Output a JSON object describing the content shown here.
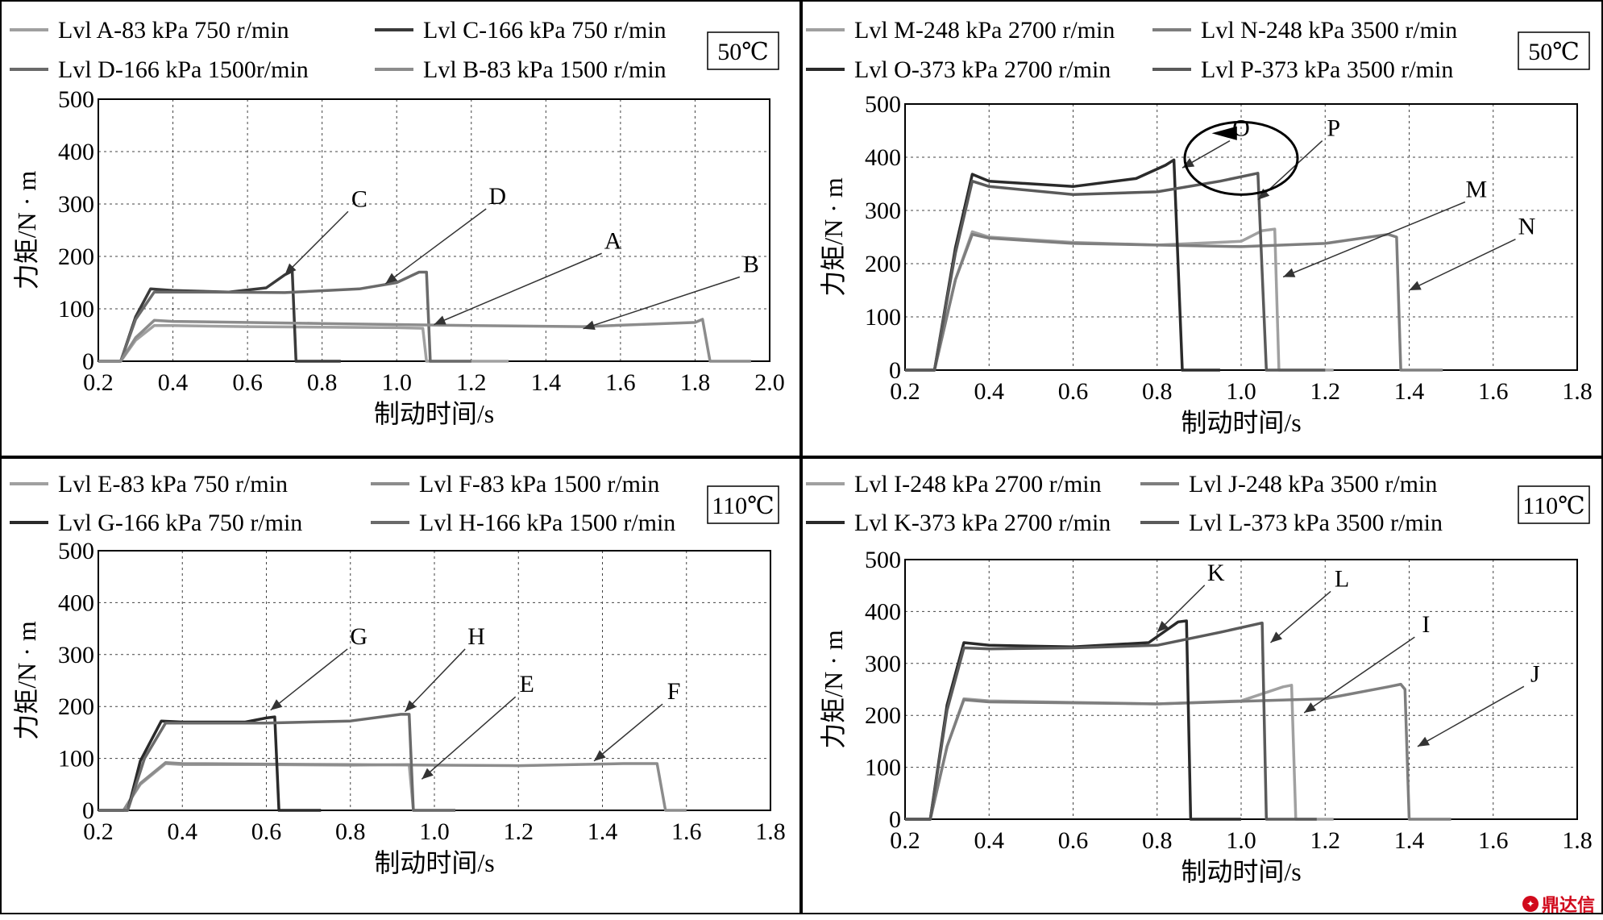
{
  "watermark": "鼎达信",
  "chart_data": [
    {
      "type": "line",
      "temperature": "50℃",
      "xlabel": "制动时间/s",
      "ylabel": "力矩/N · m",
      "xlim": [
        0.2,
        2.0
      ],
      "ylim": [
        0,
        500
      ],
      "xticks": [
        "0.2",
        "0.4",
        "0.6",
        "0.8",
        "1.0",
        "1.2",
        "1.4",
        "1.6",
        "1.8",
        "2.0"
      ],
      "yticks": [
        "0",
        "100",
        "200",
        "300",
        "400",
        "500"
      ],
      "grid": true,
      "legend": [
        "Lvl A-83 kPa 750 r/min",
        "Lvl C-166 kPa 750 r/min",
        "Lvl D-166 kPa 1500r/min",
        "Lvl B-83 kPa 1500 r/min"
      ],
      "series": [
        {
          "name": "Lvl A-83 kPa 750 r/min",
          "color": "#a0a0a0",
          "points": [
            [
              0.2,
              0
            ],
            [
              0.26,
              0
            ],
            [
              0.3,
              40
            ],
            [
              0.35,
              68
            ],
            [
              0.4,
              68
            ],
            [
              0.6,
              66
            ],
            [
              0.8,
              65
            ],
            [
              1.0,
              64
            ],
            [
              1.07,
              63
            ],
            [
              1.08,
              0
            ],
            [
              1.3,
              0
            ]
          ]
        },
        {
          "name": "Lvl C-166 kPa 750 r/min",
          "color": "#3a3a3a",
          "points": [
            [
              0.2,
              0
            ],
            [
              0.26,
              0
            ],
            [
              0.3,
              85
            ],
            [
              0.34,
              138
            ],
            [
              0.4,
              135
            ],
            [
              0.55,
              132
            ],
            [
              0.65,
              140
            ],
            [
              0.7,
              165
            ],
            [
              0.72,
              172
            ],
            [
              0.73,
              0
            ],
            [
              0.85,
              0
            ]
          ]
        },
        {
          "name": "Lvl D-166 kPa 1500r/min",
          "color": "#6a6a6a",
          "points": [
            [
              0.2,
              0
            ],
            [
              0.26,
              0
            ],
            [
              0.3,
              80
            ],
            [
              0.35,
              132
            ],
            [
              0.5,
              132
            ],
            [
              0.7,
              131
            ],
            [
              0.9,
              138
            ],
            [
              1.0,
              150
            ],
            [
              1.06,
              170
            ],
            [
              1.08,
              170
            ],
            [
              1.09,
              0
            ],
            [
              1.2,
              0
            ]
          ]
        },
        {
          "name": "Lvl B-83 kPa 1500 r/min",
          "color": "#8c8c8c",
          "points": [
            [
              0.2,
              0
            ],
            [
              0.26,
              0
            ],
            [
              0.3,
              45
            ],
            [
              0.35,
              78
            ],
            [
              0.4,
              76
            ],
            [
              0.8,
              72
            ],
            [
              1.2,
              68
            ],
            [
              1.5,
              66
            ],
            [
              1.8,
              74
            ],
            [
              1.82,
              80
            ],
            [
              1.84,
              0
            ],
            [
              1.95,
              0
            ]
          ]
        }
      ],
      "annotations": [
        {
          "label": "C",
          "x": 0.9,
          "y": 295,
          "arrow_to": [
            0.7,
            165
          ]
        },
        {
          "label": "D",
          "x": 1.27,
          "y": 300,
          "arrow_to": [
            0.97,
            148
          ]
        },
        {
          "label": "A",
          "x": 1.58,
          "y": 215,
          "arrow_to": [
            1.1,
            70
          ]
        },
        {
          "label": "B",
          "x": 1.95,
          "y": 170,
          "arrow_to": [
            1.5,
            62
          ]
        }
      ]
    },
    {
      "type": "line",
      "temperature": "50℃",
      "xlabel": "制动时间/s",
      "ylabel": "力矩/N · m",
      "xlim": [
        0.2,
        1.8
      ],
      "ylim": [
        0,
        500
      ],
      "xticks": [
        "0.2",
        "0.4",
        "0.6",
        "0.8",
        "1.0",
        "1.2",
        "1.4",
        "1.6",
        "1.8"
      ],
      "yticks": [
        "0",
        "100",
        "200",
        "300",
        "400",
        "500"
      ],
      "grid": true,
      "legend": [
        "Lvl M-248 kPa 2700 r/min",
        "Lvl N-248 kPa 3500 r/min",
        "Lvl O-373 kPa 2700 r/min",
        "Lvl P-373 kPa 3500 r/min"
      ],
      "series": [
        {
          "name": "Lvl M-248 kPa 2700 r/min",
          "color": "#a0a0a0",
          "points": [
            [
              0.2,
              0
            ],
            [
              0.27,
              0
            ],
            [
              0.32,
              170
            ],
            [
              0.36,
              260
            ],
            [
              0.4,
              250
            ],
            [
              0.6,
              240
            ],
            [
              0.8,
              235
            ],
            [
              1.0,
              242
            ],
            [
              1.05,
              262
            ],
            [
              1.08,
              265
            ],
            [
              1.09,
              0
            ],
            [
              1.22,
              0
            ]
          ]
        },
        {
          "name": "Lvl N-248 kPa 3500 r/min",
          "color": "#7e7e7e",
          "points": [
            [
              0.2,
              0
            ],
            [
              0.27,
              0
            ],
            [
              0.32,
              170
            ],
            [
              0.36,
              255
            ],
            [
              0.4,
              248
            ],
            [
              0.6,
              238
            ],
            [
              0.8,
              235
            ],
            [
              1.0,
              232
            ],
            [
              1.2,
              238
            ],
            [
              1.35,
              255
            ],
            [
              1.37,
              250
            ],
            [
              1.38,
              0
            ],
            [
              1.48,
              0
            ]
          ]
        },
        {
          "name": "Lvl O-373 kPa 2700 r/min",
          "color": "#2a2a2a",
          "points": [
            [
              0.2,
              0
            ],
            [
              0.27,
              0
            ],
            [
              0.32,
              230
            ],
            [
              0.36,
              368
            ],
            [
              0.4,
              355
            ],
            [
              0.6,
              345
            ],
            [
              0.75,
              360
            ],
            [
              0.82,
              385
            ],
            [
              0.84,
              395
            ],
            [
              0.86,
              0
            ],
            [
              0.95,
              0
            ]
          ]
        },
        {
          "name": "Lvl P-373 kPa 3500 r/min",
          "color": "#5a5a5a",
          "points": [
            [
              0.2,
              0
            ],
            [
              0.27,
              0
            ],
            [
              0.32,
              220
            ],
            [
              0.36,
              355
            ],
            [
              0.4,
              345
            ],
            [
              0.6,
              330
            ],
            [
              0.8,
              335
            ],
            [
              0.95,
              355
            ],
            [
              1.04,
              370
            ],
            [
              1.06,
              0
            ],
            [
              1.2,
              0
            ]
          ]
        }
      ],
      "annotations": [
        {
          "label": "O",
          "x": 1.0,
          "y": 440,
          "arrow_to": [
            0.86,
            380
          ]
        },
        {
          "label": "P",
          "x": 1.22,
          "y": 440,
          "arrow_to": [
            1.04,
            320
          ]
        },
        {
          "label": "M",
          "x": 1.56,
          "y": 325,
          "arrow_to": [
            1.1,
            175
          ]
        },
        {
          "label": "N",
          "x": 1.68,
          "y": 255,
          "arrow_to": [
            1.4,
            150
          ]
        }
      ]
    },
    {
      "type": "line",
      "temperature": "110℃",
      "xlabel": "制动时间/s",
      "ylabel": "力矩/N · m",
      "xlim": [
        0.2,
        1.8
      ],
      "ylim": [
        0,
        500
      ],
      "xticks": [
        "0.2",
        "0.4",
        "0.6",
        "0.8",
        "1.0",
        "1.2",
        "1.4",
        "1.6",
        "1.8"
      ],
      "yticks": [
        "0",
        "100",
        "200",
        "300",
        "400",
        "500"
      ],
      "grid": true,
      "legend": [
        "Lvl E-83 kPa 750 r/min",
        "Lvl F-83 kPa 1500 r/min",
        "Lvl G-166 kPa 750 r/min",
        "Lvl H-166 kPa 1500 r/min"
      ],
      "series": [
        {
          "name": "Lvl E-83 kPa 750 r/min",
          "color": "#a0a0a0",
          "points": [
            [
              0.2,
              0
            ],
            [
              0.26,
              0
            ],
            [
              0.3,
              50
            ],
            [
              0.36,
              90
            ],
            [
              0.4,
              88
            ],
            [
              0.6,
              88
            ],
            [
              0.8,
              87
            ],
            [
              0.94,
              88
            ],
            [
              0.95,
              0
            ],
            [
              1.05,
              0
            ]
          ]
        },
        {
          "name": "Lvl F-83 kPa 1500 r/min",
          "color": "#8c8c8c",
          "points": [
            [
              0.2,
              0
            ],
            [
              0.26,
              0
            ],
            [
              0.3,
              52
            ],
            [
              0.36,
              92
            ],
            [
              0.4,
              90
            ],
            [
              0.8,
              88
            ],
            [
              1.2,
              86
            ],
            [
              1.45,
              90
            ],
            [
              1.53,
              90
            ],
            [
              1.55,
              0
            ],
            [
              1.6,
              0
            ]
          ]
        },
        {
          "name": "Lvl G-166 kPa 750 r/min",
          "color": "#2a2a2a",
          "points": [
            [
              0.2,
              0
            ],
            [
              0.27,
              0
            ],
            [
              0.3,
              95
            ],
            [
              0.35,
              172
            ],
            [
              0.4,
              170
            ],
            [
              0.55,
              170
            ],
            [
              0.6,
              178
            ],
            [
              0.62,
              180
            ],
            [
              0.63,
              0
            ],
            [
              0.73,
              0
            ]
          ]
        },
        {
          "name": "Lvl H-166 kPa 1500 r/min",
          "color": "#6a6a6a",
          "points": [
            [
              0.2,
              0
            ],
            [
              0.27,
              0
            ],
            [
              0.31,
              100
            ],
            [
              0.36,
              168
            ],
            [
              0.4,
              168
            ],
            [
              0.6,
              168
            ],
            [
              0.8,
              172
            ],
            [
              0.92,
              185
            ],
            [
              0.94,
              185
            ],
            [
              0.95,
              0
            ],
            [
              1.05,
              0
            ]
          ]
        }
      ],
      "annotations": [
        {
          "label": "G",
          "x": 0.82,
          "y": 320,
          "arrow_to": [
            0.61,
            193
          ]
        },
        {
          "label": "H",
          "x": 1.1,
          "y": 320,
          "arrow_to": [
            0.93,
            190
          ]
        },
        {
          "label": "E",
          "x": 1.22,
          "y": 228,
          "arrow_to": [
            0.97,
            60
          ]
        },
        {
          "label": "F",
          "x": 1.57,
          "y": 214,
          "arrow_to": [
            1.38,
            95
          ]
        }
      ]
    },
    {
      "type": "line",
      "temperature": "110℃",
      "xlabel": "制动时间/s",
      "ylabel": "力矩/N · m",
      "xlim": [
        0.2,
        1.8
      ],
      "ylim": [
        0,
        500
      ],
      "xticks": [
        "0.2",
        "0.4",
        "0.6",
        "0.8",
        "1.0",
        "1.2",
        "1.4",
        "1.6",
        "1.8"
      ],
      "yticks": [
        "0",
        "100",
        "200",
        "300",
        "400",
        "500"
      ],
      "grid": true,
      "legend": [
        "Lvl I-248 kPa 2700 r/min",
        "Lvl J-248 kPa 3500 r/min",
        "Lvl K-373 kPa 2700 r/min",
        "Lvl L-373 kPa 3500 r/min"
      ],
      "series": [
        {
          "name": "Lvl I-248 kPa 2700 r/min",
          "color": "#a0a0a0",
          "points": [
            [
              0.2,
              0
            ],
            [
              0.26,
              0
            ],
            [
              0.3,
              140
            ],
            [
              0.34,
              232
            ],
            [
              0.4,
              228
            ],
            [
              0.6,
              225
            ],
            [
              0.8,
              222
            ],
            [
              1.0,
              228
            ],
            [
              1.1,
              255
            ],
            [
              1.12,
              258
            ],
            [
              1.13,
              0
            ],
            [
              1.22,
              0
            ]
          ]
        },
        {
          "name": "Lvl J-248 kPa 3500 r/min",
          "color": "#7e7e7e",
          "points": [
            [
              0.2,
              0
            ],
            [
              0.26,
              0
            ],
            [
              0.3,
              140
            ],
            [
              0.34,
              230
            ],
            [
              0.4,
              226
            ],
            [
              0.8,
              222
            ],
            [
              1.2,
              232
            ],
            [
              1.35,
              255
            ],
            [
              1.38,
              260
            ],
            [
              1.39,
              250
            ],
            [
              1.4,
              0
            ],
            [
              1.5,
              0
            ]
          ]
        },
        {
          "name": "Lvl K-373 kPa 2700 r/min",
          "color": "#2a2a2a",
          "points": [
            [
              0.2,
              0
            ],
            [
              0.26,
              0
            ],
            [
              0.3,
              220
            ],
            [
              0.34,
              340
            ],
            [
              0.4,
              335
            ],
            [
              0.6,
              332
            ],
            [
              0.78,
              340
            ],
            [
              0.85,
              380
            ],
            [
              0.87,
              382
            ],
            [
              0.88,
              0
            ],
            [
              1.0,
              0
            ]
          ]
        },
        {
          "name": "Lvl L-373 kPa 3500 r/min",
          "color": "#5a5a5a",
          "points": [
            [
              0.2,
              0
            ],
            [
              0.26,
              0
            ],
            [
              0.3,
              210
            ],
            [
              0.34,
              330
            ],
            [
              0.4,
              328
            ],
            [
              0.6,
              330
            ],
            [
              0.8,
              335
            ],
            [
              0.95,
              360
            ],
            [
              1.05,
              378
            ],
            [
              1.06,
              0
            ],
            [
              1.18,
              0
            ]
          ]
        }
      ],
      "annotations": [
        {
          "label": "K",
          "x": 0.94,
          "y": 460,
          "arrow_to": [
            0.8,
            360
          ]
        },
        {
          "label": "L",
          "x": 1.24,
          "y": 448,
          "arrow_to": [
            1.07,
            340
          ]
        },
        {
          "label": "I",
          "x": 1.44,
          "y": 360,
          "arrow_to": [
            1.15,
            205
          ]
        },
        {
          "label": "J",
          "x": 1.7,
          "y": 265,
          "arrow_to": [
            1.42,
            140
          ]
        }
      ]
    }
  ]
}
